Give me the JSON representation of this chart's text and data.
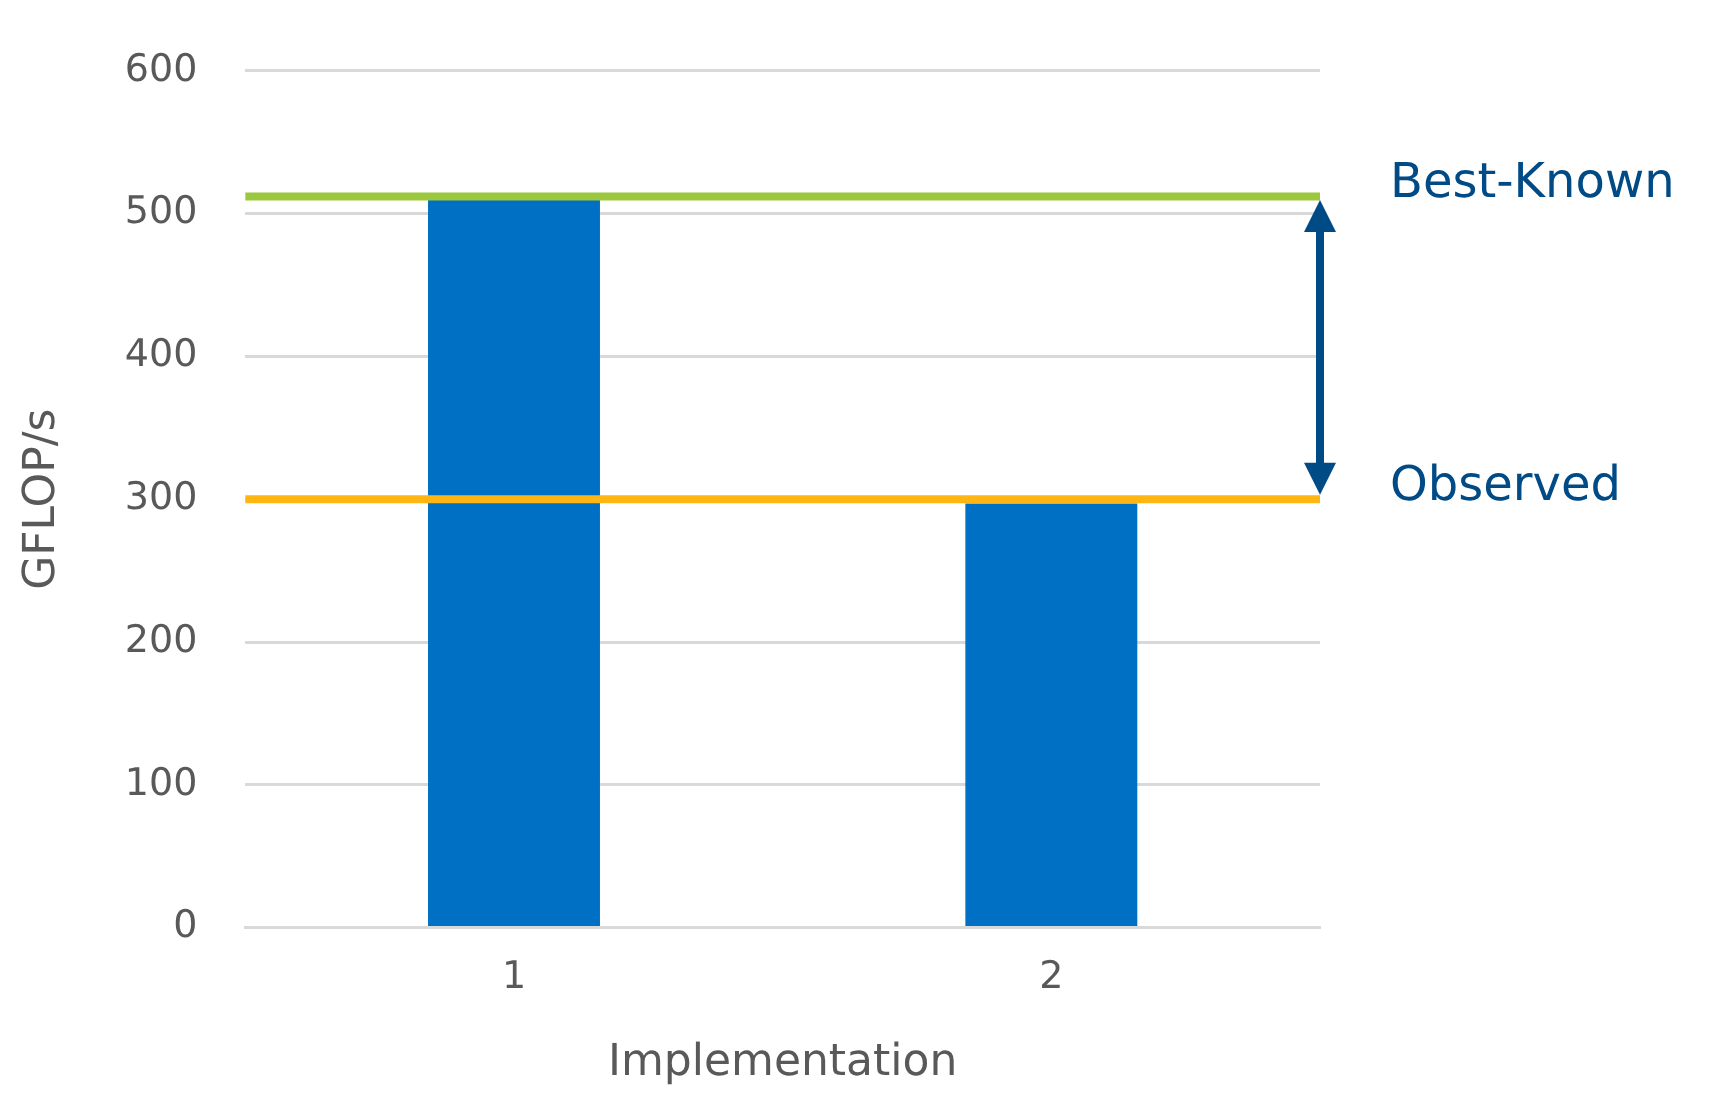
{
  "chart_data": {
    "type": "bar",
    "xlabel": "Implementation",
    "ylabel": "GFLOP/s",
    "categories": [
      "1",
      "2"
    ],
    "values": [
      510,
      297
    ],
    "color": "#0070c4",
    "ylim": [
      0,
      600
    ],
    "yticks": [
      0,
      100,
      200,
      300,
      400,
      500,
      600
    ],
    "grid": "y",
    "legend": false,
    "ref_lines": [
      {
        "axis": "y",
        "value": 512,
        "label": "Best-Known",
        "color": "#9bc83c"
      },
      {
        "axis": "y",
        "value": 300,
        "label": "Observed",
        "color": "#ffb612"
      }
    ]
  }
}
